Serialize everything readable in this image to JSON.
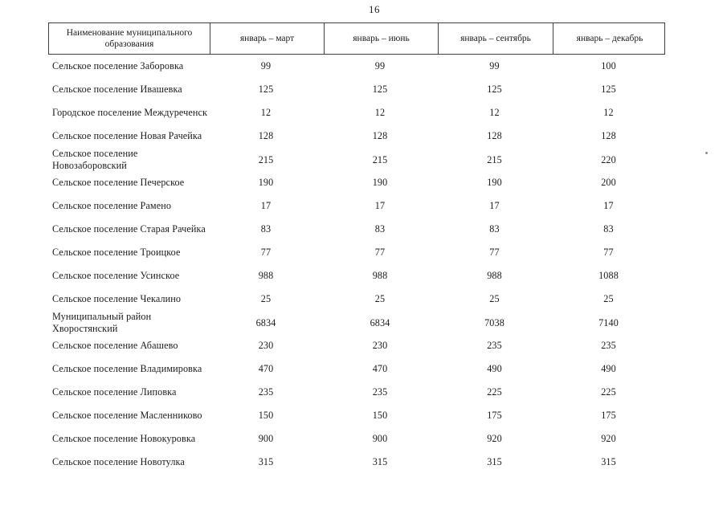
{
  "page": {
    "number": "16"
  },
  "table": {
    "columns": [
      "Наименование муниципального образования",
      "январь – март",
      "январь – июнь",
      "январь – сентябрь",
      "январь – декабрь"
    ],
    "rows": [
      {
        "name": "Сельское поселение Заборовка",
        "values": [
          "99",
          "99",
          "99",
          "100"
        ]
      },
      {
        "name": "Сельское поселение Ивашевка",
        "values": [
          "125",
          "125",
          "125",
          "125"
        ]
      },
      {
        "name": "Городское поселение Междуреченск",
        "values": [
          "12",
          "12",
          "12",
          "12"
        ]
      },
      {
        "name": "Сельское поселение Новая Рачейка",
        "values": [
          "128",
          "128",
          "128",
          "128"
        ]
      },
      {
        "name": "Сельское поселение Новозаборовский",
        "values": [
          "215",
          "215",
          "215",
          "220"
        ]
      },
      {
        "name": "Сельское поселение Печерское",
        "values": [
          "190",
          "190",
          "190",
          "200"
        ]
      },
      {
        "name": "Сельское поселение Рамено",
        "values": [
          "17",
          "17",
          "17",
          "17"
        ]
      },
      {
        "name": "Сельское поселение Старая Рачейка",
        "values": [
          "83",
          "83",
          "83",
          "83"
        ]
      },
      {
        "name": "Сельское поселение Троицкое",
        "values": [
          "77",
          "77",
          "77",
          "77"
        ]
      },
      {
        "name": "Сельское поселение Усинское",
        "values": [
          "988",
          "988",
          "988",
          "1088"
        ]
      },
      {
        "name": "Сельское поселение Чекалино",
        "values": [
          "25",
          "25",
          "25",
          "25"
        ]
      },
      {
        "name": "Муниципальный район Хворостянский",
        "values": [
          "6834",
          "6834",
          "7038",
          "7140"
        ]
      },
      {
        "name": "Сельское поселение Абашево",
        "values": [
          "230",
          "230",
          "235",
          "235"
        ]
      },
      {
        "name": "Сельское поселение Владимировка",
        "values": [
          "470",
          "470",
          "490",
          "490"
        ]
      },
      {
        "name": "Сельское поселение Липовка",
        "values": [
          "235",
          "235",
          "225",
          "225"
        ]
      },
      {
        "name": "Сельское поселение Масленниково",
        "values": [
          "150",
          "150",
          "175",
          "175"
        ]
      },
      {
        "name": "Сельское поселение Новокуровка",
        "values": [
          "900",
          "900",
          "920",
          "920"
        ]
      },
      {
        "name": "Сельское поселение Новотулка",
        "values": [
          "315",
          "315",
          "315",
          "315"
        ]
      }
    ]
  }
}
